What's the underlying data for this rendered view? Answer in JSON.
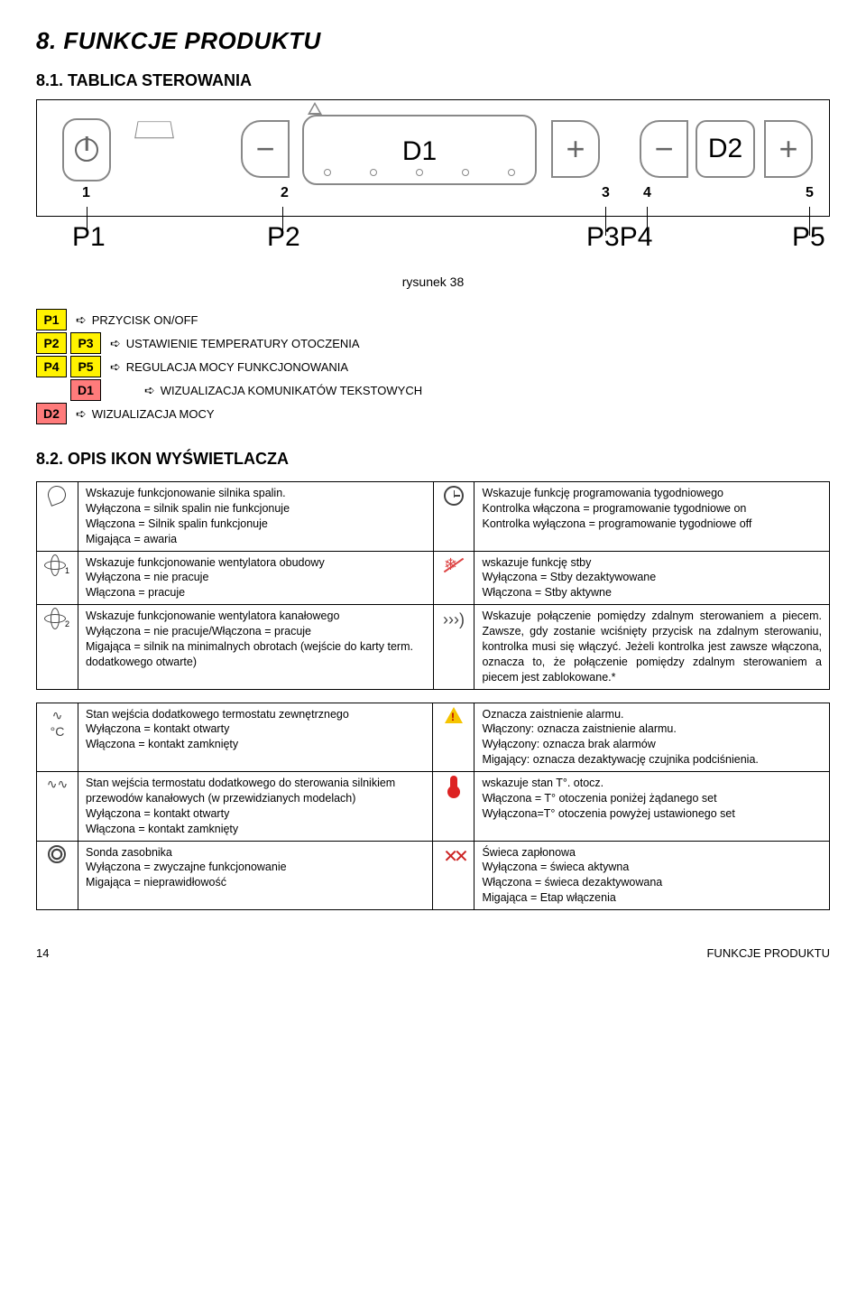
{
  "title": "8. FUNKCJE PRODUKTU",
  "subsection": "8.1. TABLICA STEROWANIA",
  "panel": {
    "d1": "D1",
    "d2": "D2",
    "nums": [
      "1",
      "2",
      "3",
      "4",
      "5"
    ],
    "plabels": [
      "P1",
      "P2",
      "P3P4",
      "P5"
    ],
    "p1": "P1",
    "p2": "P2",
    "p3p4": "P3P4",
    "p5": "P5"
  },
  "figure_caption": "rysunek 38",
  "legend": {
    "p1": "P1",
    "p2": "P2",
    "p3": "P3",
    "p4": "P4",
    "p5": "P5",
    "d1": "D1",
    "d2": "D2",
    "t_onoff": "PRZYCISK ON/OFF",
    "t_temp": "USTAWIENIE TEMPERATURY OTOCZENIA",
    "t_power": "REGULACJA MOCY FUNKCJONOWANIA",
    "t_textvis": "WIZUALIZACJA KOMUNIKATÓW TEKSTOWYCH",
    "t_powervis": "WIZUALIZACJA MOCY"
  },
  "section82": "8.2. OPIS IKON WYŚWIETLACZA",
  "rows1": [
    {
      "left": "Wskazuje funkcjonowanie silnika spalin.\nWyłączona = silnik spalin nie funkcjonuje\nWłączona = Silnik spalin funkcjonuje\nMigająca = awaria",
      "right": "Wskazuje funkcję programowania tygodniowego\nKontrolka włączona = programowanie tygodniowe on\nKontrolka wyłączona = programowanie tygodniowe off"
    },
    {
      "left": "Wskazuje funkcjonowanie wentylatora obudowy\nWyłączona = nie pracuje\nWłączona = pracuje",
      "right": "wskazuje funkcję stby\nWyłączona = Stby dezaktywowane\nWłączona = Stby aktywne"
    },
    {
      "left": "Wskazuje funkcjonowanie wentylatora kanałowego\nWyłączona = nie pracuje/Włączona = pracuje\nMigająca = silnik na minimalnych obrotach (wejście do karty term. dodatkowego otwarte)",
      "right": "Wskazuje połączenie pomiędzy zdalnym sterowaniem a piecem. Zawsze, gdy zostanie wciśnięty przycisk na zdalnym sterowaniu, kontrolka musi się włączyć. Jeżeli kontrolka jest zawsze włączona, oznacza to, że połączenie pomiędzy zdalnym sterowaniem a piecem jest zablokowane.*"
    }
  ],
  "rows2": [
    {
      "left": "Stan wejścia dodatkowego termostatu zewnętrznego\nWyłączona = kontakt otwarty\nWłączona = kontakt zamknięty",
      "right": "Oznacza zaistnienie alarmu.\nWłączony: oznacza zaistnienie alarmu.\nWyłączony: oznacza brak alarmów\nMigający: oznacza dezaktywację czujnika podciśnienia."
    },
    {
      "left": "Stan wejścia termostatu dodatkowego do sterowania silnikiem przewodów kanałowych (w przewidzianych modelach)\nWyłączona = kontakt otwarty\nWłączona = kontakt zamknięty",
      "right": "wskazuje stan T°. otocz.\nWłączona = T° otoczenia poniżej żądanego set\nWyłączona=T° otoczenia powyżej ustawionego set"
    },
    {
      "left": "Sonda zasobnika\nWyłączona = zwyczajne funkcjonowanie\nMigająca = nieprawidłowość",
      "right": "Świeca zapłonowa\nWyłączona = świeca aktywna\nWłączona = świeca dezaktywowana\nMigająca = Etap włączenia"
    }
  ],
  "footer": {
    "page": "14",
    "section": "FUNKCJE PRODUKTU"
  },
  "colors": {
    "yellow": "#fff200",
    "red": "#ff7b7b"
  }
}
